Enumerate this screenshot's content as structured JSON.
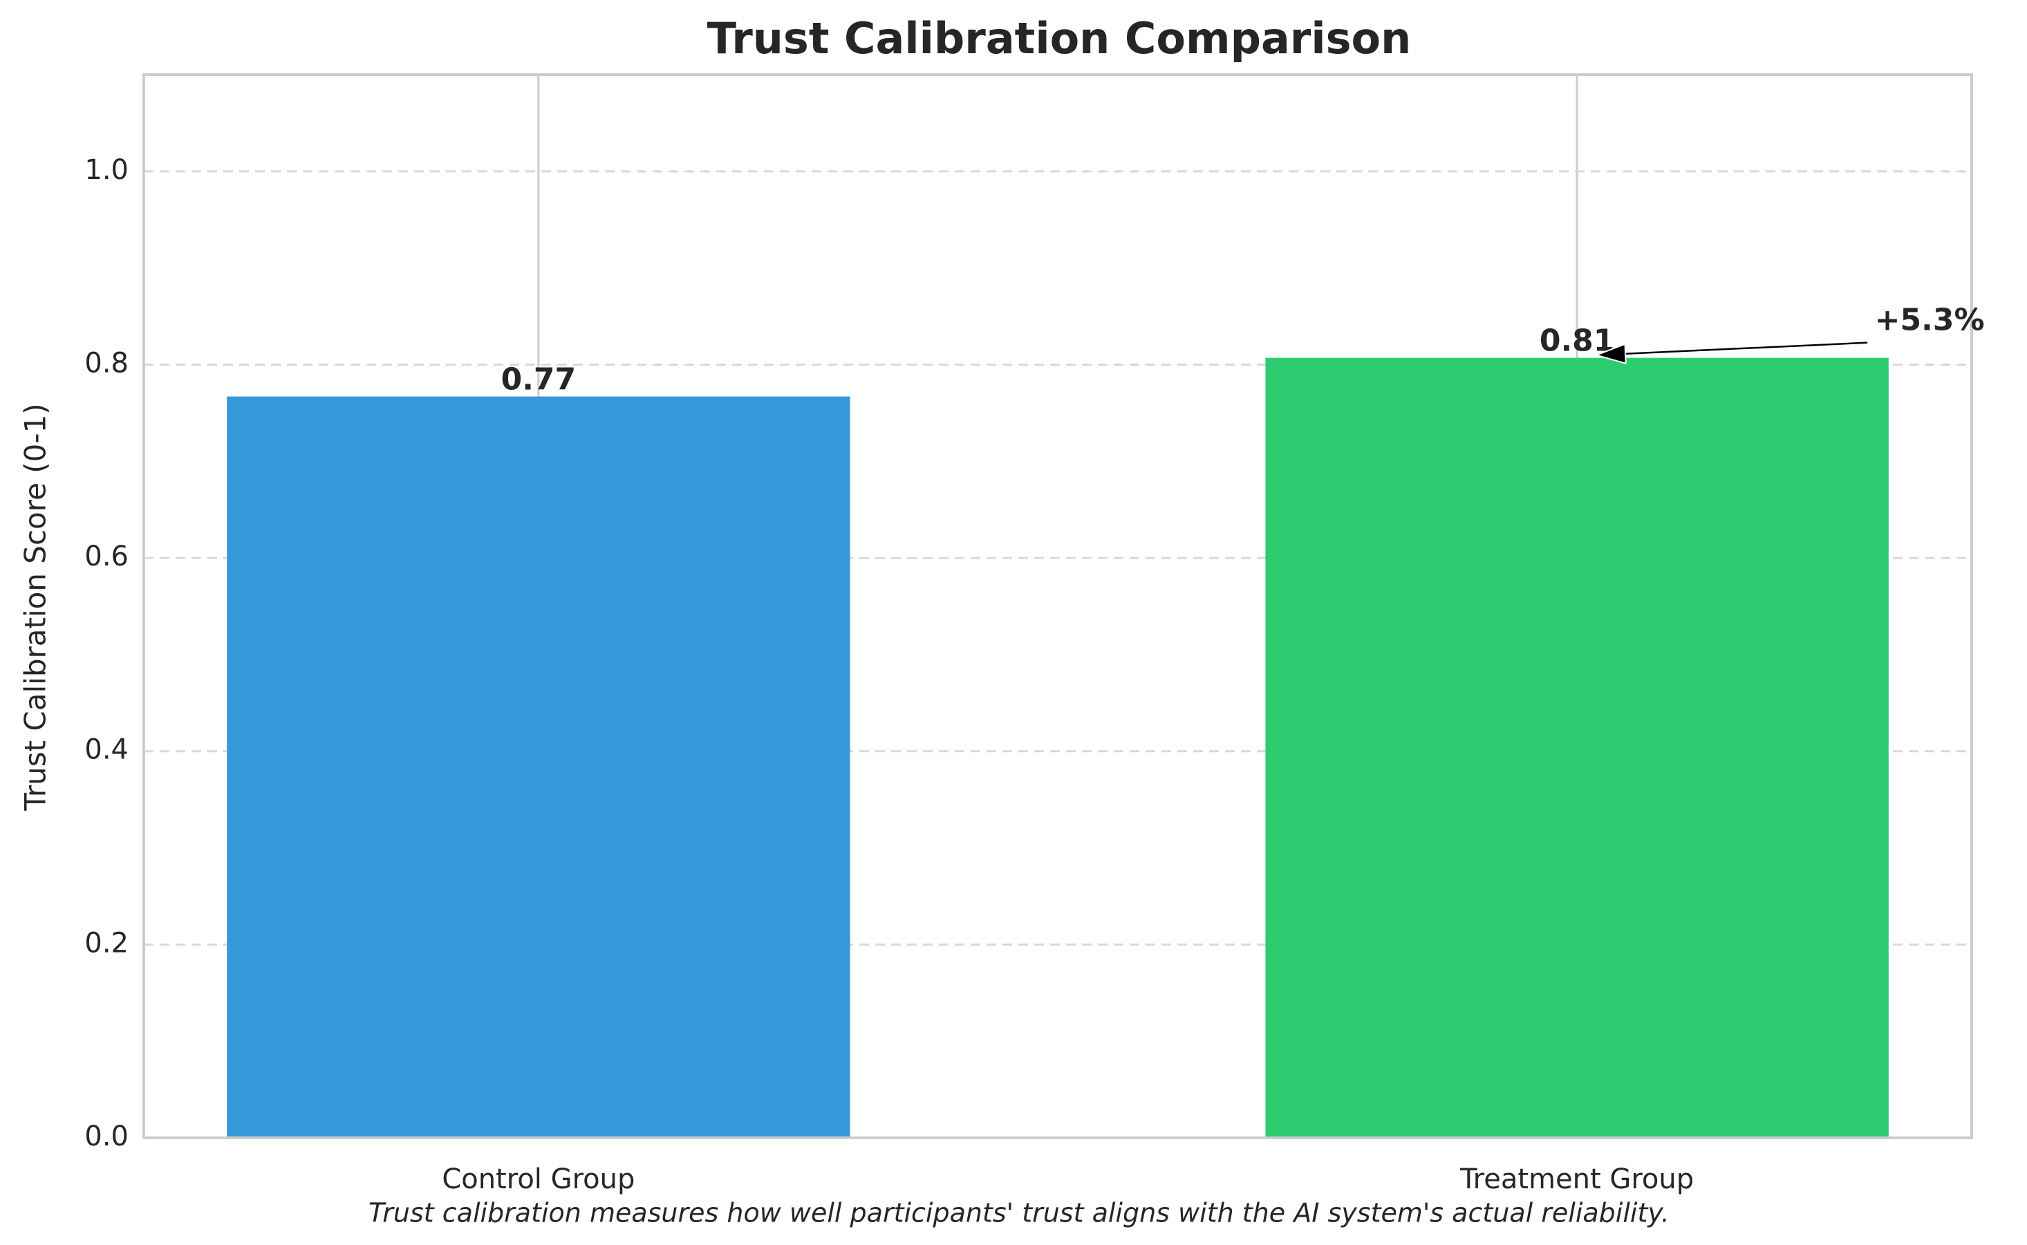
{
  "chart_data": {
    "type": "bar",
    "title": "Trust Calibration Comparison",
    "xlabel": "",
    "ylabel": "Trust Calibration Score (0-1)",
    "categories": [
      "Control Group",
      "Treatment Group"
    ],
    "values": [
      0.767,
      0.807
    ],
    "value_labels": [
      "0.77",
      "0.81"
    ],
    "colors": [
      "#3498db",
      "#2ecc71"
    ],
    "ylim": [
      0,
      1.1
    ],
    "yticks": [
      0.0,
      0.2,
      0.4,
      0.6,
      0.8,
      1.0
    ],
    "ytick_labels": [
      "0.0",
      "0.2",
      "0.4",
      "0.6",
      "0.8",
      "1.0"
    ],
    "grid": {
      "y": true,
      "y_style": "dashed",
      "x": true,
      "x_style": "solid"
    },
    "annotation": {
      "text": "+5.3%",
      "target_category": "Treatment Group",
      "arrow": true
    },
    "caption": "Trust calibration measures how well participants' trust aligns with the AI system's actual reliability."
  }
}
